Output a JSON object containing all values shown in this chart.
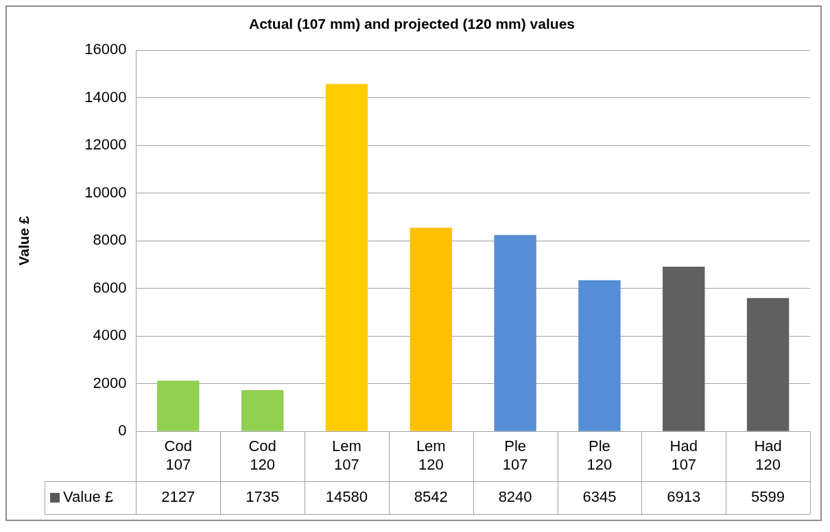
{
  "chart_data": {
    "type": "bar",
    "title": "Actual (107 mm) and projected (120 mm) values",
    "ylabel": "Value £",
    "categories": [
      "Cod 107",
      "Cod 120",
      "Lem 107",
      "Lem 120",
      "Ple 107",
      "Ple 120",
      "Had 107",
      "Had 120"
    ],
    "series": [
      {
        "name": "Value £",
        "color": "#595959",
        "colors": [
          "#92d050",
          "#92d050",
          "#ffcc00",
          "#ffc000",
          "#558ed5",
          "#558ed5",
          "#606060",
          "#606060"
        ],
        "values": [
          2127,
          1735,
          14580,
          8542,
          8240,
          6345,
          6913,
          5599
        ]
      }
    ],
    "ylim": [
      0,
      16000
    ],
    "yticks": [
      0,
      2000,
      4000,
      6000,
      8000,
      10000,
      12000,
      14000,
      16000
    ],
    "grid": "y",
    "data_labels": true
  }
}
